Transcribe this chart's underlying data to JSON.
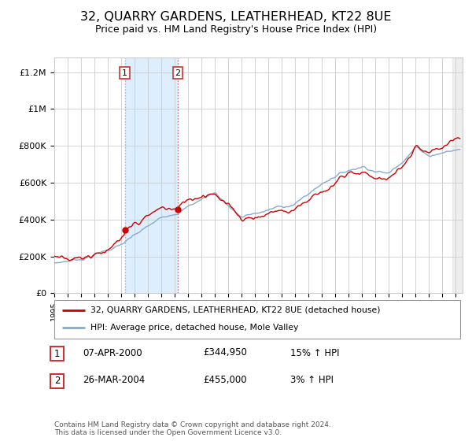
{
  "title": "32, QUARRY GARDENS, LEATHERHEAD, KT22 8UE",
  "subtitle": "Price paid vs. HM Land Registry's House Price Index (HPI)",
  "title_fontsize": 11.5,
  "subtitle_fontsize": 9,
  "ylabel_ticks": [
    "£0",
    "£200K",
    "£400K",
    "£600K",
    "£800K",
    "£1M",
    "£1.2M"
  ],
  "ytick_values": [
    0,
    200000,
    400000,
    600000,
    800000,
    1000000,
    1200000
  ],
  "ylim": [
    0,
    1300000
  ],
  "xlim_start": 1995.0,
  "xlim_end": 2025.5,
  "sale1_date": 2000.27,
  "sale1_price": 344950,
  "sale2_date": 2004.23,
  "sale2_price": 455000,
  "red_color": "#cc0000",
  "blue_color": "#88aacc",
  "shade_color": "#ddeeff",
  "grid_color": "#cccccc",
  "background_color": "#ffffff",
  "legend_label_red": "32, QUARRY GARDENS, LEATHERHEAD, KT22 8UE (detached house)",
  "legend_label_blue": "HPI: Average price, detached house, Mole Valley",
  "table_row1": [
    "1",
    "07-APR-2000",
    "£344,950",
    "15% ↑ HPI"
  ],
  "table_row2": [
    "2",
    "26-MAR-2004",
    "£455,000",
    "3% ↑ HPI"
  ],
  "footnote": "Contains HM Land Registry data © Crown copyright and database right 2024.\nThis data is licensed under the Open Government Licence v3.0."
}
